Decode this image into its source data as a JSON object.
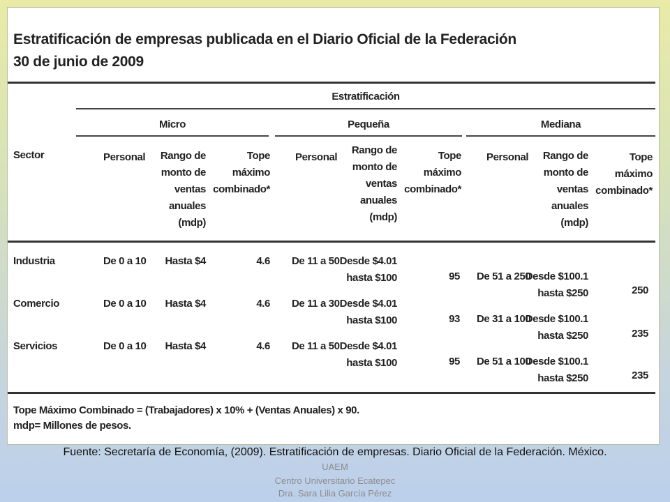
{
  "title_line1": "Estratificación de empresas publicada en el Diario Oficial de la Federación",
  "title_line2": "30 de junio de 2009",
  "group_header": "Estratificación",
  "size_headers": {
    "micro": "Micro",
    "pequena": "Pequeña",
    "mediana": "Mediana"
  },
  "sector_header": "Sector",
  "col_headers": {
    "personal": "Personal",
    "rango": [
      "Rango de",
      "monto de",
      "ventas",
      "anuales",
      "(mdp)"
    ],
    "tope": [
      "Tope",
      "máximo",
      "combinado*"
    ]
  },
  "rows": [
    {
      "sector": "Industria",
      "micro_personal": "De 0 a 10",
      "micro_rango": "Hasta $4",
      "micro_tope": "4.6",
      "pequena_personal": "De 11 a 50",
      "pequena_rango_1": "Desde $4.01",
      "pequena_rango_2": "hasta $100",
      "pequena_tope": "95",
      "mediana_personal": "De 51 a 250",
      "mediana_rango_1": "Desde $100.1",
      "mediana_rango_2": "hasta $250",
      "mediana_tope": "250"
    },
    {
      "sector": "Comercio",
      "micro_personal": "De 0 a 10",
      "micro_rango": "Hasta $4",
      "micro_tope": "4.6",
      "pequena_personal": "De 11 a 30",
      "pequena_rango_1": "Desde $4.01",
      "pequena_rango_2": "hasta $100",
      "pequena_tope": "93",
      "mediana_personal": "De 31 a 100",
      "mediana_rango_1": "Desde $100.1",
      "mediana_rango_2": "hasta $250",
      "mediana_tope": "235"
    },
    {
      "sector": "Servicios",
      "micro_personal": "De 0 a 10",
      "micro_rango": "Hasta $4",
      "micro_tope": "4.6",
      "pequena_personal": "De 11 a 50",
      "pequena_rango_1": "Desde $4.01",
      "pequena_rango_2": "hasta $100",
      "pequena_tope": "95",
      "mediana_personal": "De 51 a 100",
      "mediana_rango_1": "Desde $100.1",
      "mediana_rango_2": "hasta $250",
      "mediana_tope": "235"
    }
  ],
  "footnote_1": "Tope Máximo Combinado = (Trabajadores) x 10% + (Ventas Anuales) x 90.",
  "footnote_2": "mdp= Millones de pesos.",
  "source": "Fuente: Secretaría de Economía,  (2009). Estratificación de empresas. Diario Oficial de la Federación. México.",
  "credit": [
    "UAEM",
    "Centro Universitario Ecatepec",
    "Dra. Sara Lilia García Pérez"
  ]
}
